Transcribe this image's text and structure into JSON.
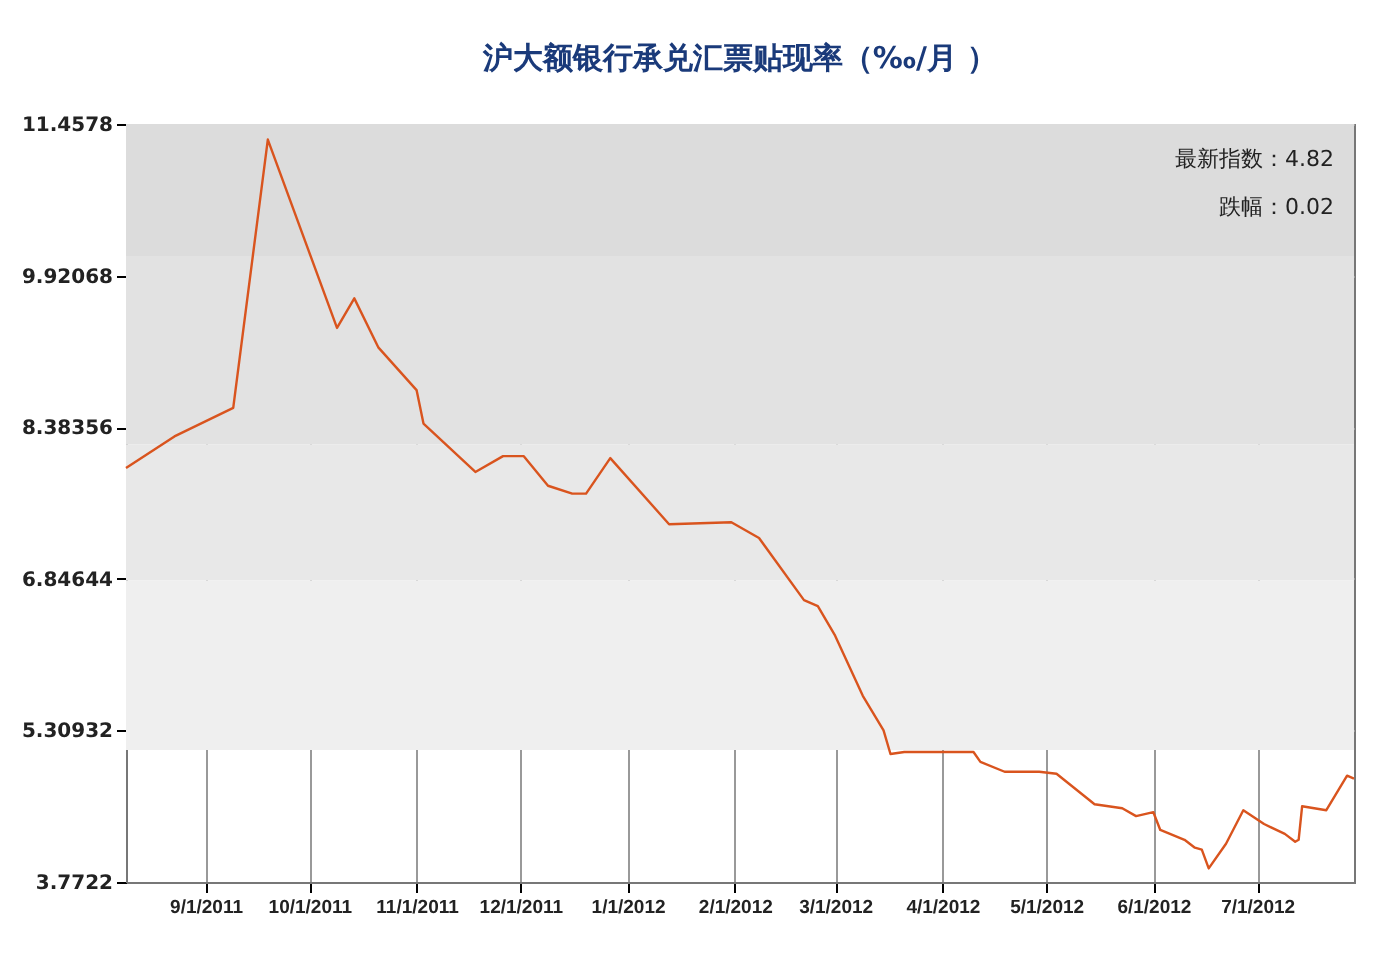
{
  "chart_data": {
    "type": "line",
    "title": "沪大额银行承兑汇票贴现率（‰/月 ）",
    "x": [
      "2011-08-09",
      "2011-08-23",
      "2011-09-09",
      "2011-09-19",
      "2011-10-09",
      "2011-10-14",
      "2011-10-21",
      "2011-11-01",
      "2011-11-03",
      "2011-11-18",
      "2011-11-26",
      "2011-12-02",
      "2011-12-09",
      "2011-12-16",
      "2011-12-20",
      "2011-12-27",
      "2012-01-13",
      "2012-01-31",
      "2012-02-08",
      "2012-02-21",
      "2012-02-25",
      "2012-03-01",
      "2012-03-09",
      "2012-03-15",
      "2012-03-17",
      "2012-03-21",
      "2012-04-10",
      "2012-04-12",
      "2012-04-19",
      "2012-04-29",
      "2012-05-04",
      "2012-05-15",
      "2012-05-23",
      "2012-05-27",
      "2012-06-01",
      "2012-06-03",
      "2012-06-10",
      "2012-06-13",
      "2012-06-15",
      "2012-06-17",
      "2012-06-22",
      "2012-06-27",
      "2012-07-03",
      "2012-07-09",
      "2012-07-12",
      "2012-07-13",
      "2012-07-14",
      "2012-07-21",
      "2012-07-27",
      "2012-07-29"
    ],
    "series": [
      {
        "color": "#d9541e",
        "values": [
          7.97,
          8.29,
          8.58,
          11.3,
          9.39,
          9.69,
          9.19,
          8.76,
          8.42,
          7.93,
          8.09,
          8.09,
          7.79,
          7.71,
          7.71,
          8.07,
          7.4,
          7.42,
          7.26,
          6.63,
          6.57,
          6.27,
          5.66,
          5.31,
          5.07,
          5.09,
          5.09,
          4.99,
          4.89,
          4.89,
          4.87,
          4.56,
          4.52,
          4.44,
          4.48,
          4.3,
          4.2,
          4.12,
          4.1,
          3.91,
          4.16,
          4.5,
          4.36,
          4.26,
          4.18,
          4.2,
          4.54,
          4.5,
          4.85,
          4.82
        ]
      }
    ],
    "xlim": [
      "2011-08-09",
      "2012-07-29"
    ],
    "xticks": [
      {
        "value": "2011-09-01",
        "label": "9/1/2011"
      },
      {
        "value": "2011-10-01",
        "label": "10/1/2011"
      },
      {
        "value": "2011-11-01",
        "label": "11/1/2011"
      },
      {
        "value": "2011-12-01",
        "label": "12/1/2011"
      },
      {
        "value": "2012-01-01",
        "label": "1/1/2012"
      },
      {
        "value": "2012-02-01",
        "label": "2/1/2012"
      },
      {
        "value": "2012-03-01",
        "label": "3/1/2012"
      },
      {
        "value": "2012-04-01",
        "label": "4/1/2012"
      },
      {
        "value": "2012-05-01",
        "label": "5/1/2012"
      },
      {
        "value": "2012-06-01",
        "label": "6/1/2012"
      },
      {
        "value": "2012-07-01",
        "label": "7/1/2012"
      }
    ],
    "ylim": [
      3.7722,
      11.4578
    ],
    "yticks": [
      3.7722,
      5.30932,
      6.84644,
      8.38356,
      9.92068,
      11.4578
    ],
    "bands": [
      {
        "axis": "y",
        "from": 10.12,
        "to": 11.4578,
        "color": "#dcdcdc"
      },
      {
        "axis": "y",
        "from": 8.21,
        "to": 10.12,
        "color": "#e2e2e2"
      },
      {
        "axis": "y",
        "from": 6.83,
        "to": 8.21,
        "color": "#e8e8e8"
      },
      {
        "axis": "y",
        "from": 5.11,
        "to": 6.83,
        "color": "#efefef"
      }
    ],
    "annotations": [
      "最新指数：4.82",
      "跌幅：0.02"
    ],
    "grid": true,
    "marker": "none",
    "line_style": "solid"
  }
}
